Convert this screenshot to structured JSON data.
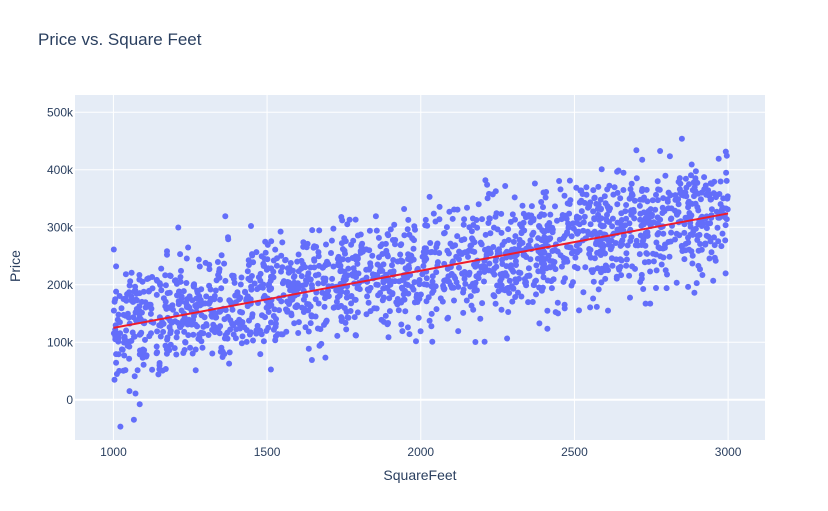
{
  "chart_data": {
    "type": "scatter",
    "title": "Price vs. Square Feet",
    "xlabel": "SquareFeet",
    "ylabel": "Price",
    "xlim": [
      875,
      3120
    ],
    "ylim": [
      -70000,
      530000
    ],
    "x_ticks": [
      1000,
      1500,
      2000,
      2500,
      3000
    ],
    "x_tick_labels": [
      "1000",
      "1500",
      "2000",
      "2500",
      "3000"
    ],
    "y_ticks": [
      0,
      100000,
      200000,
      300000,
      400000,
      500000
    ],
    "y_tick_labels": [
      "0",
      "100k",
      "200k",
      "300k",
      "400k",
      "500k"
    ],
    "grid": true,
    "legend": "none",
    "colors": {
      "background": "#e5ecf6",
      "grid": "#ffffff",
      "points": "#636efa",
      "trend": "#ef1c2b"
    },
    "series": [
      {
        "kind": "scatter",
        "x_range": [
          1000,
          3000
        ],
        "trend_intercept": 25000,
        "trend_slope": 100,
        "spread_sd": 50000,
        "count": 1800
      },
      {
        "kind": "line",
        "x": [
          1000,
          3000
        ],
        "y": [
          125000,
          324000
        ]
      }
    ]
  }
}
